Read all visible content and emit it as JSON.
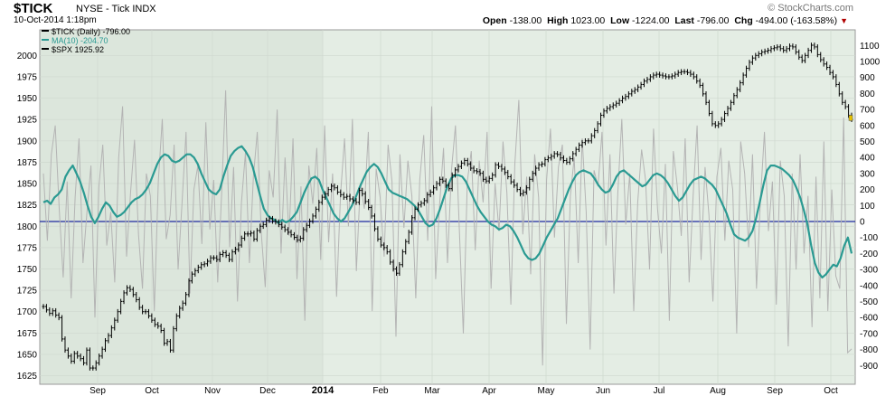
{
  "header": {
    "symbol": "$TICK",
    "exchange_desc": "NYSE - Tick INDX",
    "datetime": "10-Oct-2014 1:18pm",
    "brand": "© StockCharts.com",
    "ohlc": {
      "open_label": "Open",
      "open": "-138.00",
      "high_label": "High",
      "high": "1023.00",
      "low_label": "Low",
      "low": "-1224.00",
      "last_label": "Last",
      "last": "-796.00",
      "chg_label": "Chg",
      "chg": "-494.00 (-163.58%)"
    }
  },
  "legend": {
    "tick": "$TICK (Daily) -796.00",
    "ma": "MA(10) -204.70",
    "spx": "$SPX 1925.92"
  },
  "colors": {
    "background": "#ffffff",
    "plot_bg": "#e4ede4",
    "plot_bg_alt": "#dce6dc",
    "tick_line": "#b4b4b4",
    "ma_line": "#2a9a92",
    "spx_bars": "#000000",
    "zero_line": "#1f2aa0",
    "last_marker": "#e6c200"
  },
  "chart_data": {
    "type": "line",
    "x_labels": [
      "Sep",
      "Oct",
      "Nov",
      "Dec",
      "2014",
      "Feb",
      "Mar",
      "Apr",
      "May",
      "Jun",
      "Jul",
      "Aug",
      "Sep",
      "Oct"
    ],
    "y_left": {
      "label": "$SPX",
      "ticks": [
        1625,
        1650,
        1675,
        1700,
        1725,
        1750,
        1775,
        1800,
        1825,
        1850,
        1875,
        1900,
        1925,
        1950,
        1975,
        2000
      ],
      "range": [
        1615,
        2030
      ]
    },
    "y_right": {
      "label": "$TICK",
      "ticks": [
        -900,
        -800,
        -700,
        -600,
        -500,
        -400,
        -300,
        -200,
        -100,
        0,
        100,
        200,
        300,
        400,
        500,
        600,
        700,
        800,
        900,
        1000,
        1100
      ]
    },
    "series": [
      {
        "name": "$TICK (Daily)",
        "kind": "line",
        "values": [
          300,
          -120,
          420,
          600,
          80,
          -350,
          250,
          -480,
          150,
          520,
          -260,
          60,
          350,
          -600,
          220,
          480,
          -150,
          60,
          -380,
          400,
          720,
          -220,
          180,
          510,
          -80,
          -420,
          300,
          160,
          -560,
          250,
          640,
          -110,
          40,
          480,
          -300,
          120,
          560,
          -450,
          200,
          350,
          -140,
          620,
          -50,
          260,
          -380,
          180,
          820,
          -160,
          340,
          -500,
          120,
          430,
          -260,
          280,
          560,
          -70,
          -410,
          320,
          150,
          700,
          -200,
          400,
          -90,
          520,
          -360,
          220,
          -620,
          350,
          110,
          460,
          -240,
          600,
          -130,
          300,
          -470,
          170,
          520,
          -30,
          640,
          -310,
          240,
          80,
          560,
          -560,
          330,
          150,
          -220,
          480,
          250,
          -720,
          420,
          -40,
          380,
          160,
          -480,
          260,
          540,
          -120,
          720,
          -360,
          100,
          460,
          -260,
          320,
          600,
          -50,
          -700,
          250,
          440,
          -180,
          380,
          120,
          560,
          -420,
          240,
          -60,
          500,
          180,
          -520,
          360,
          760,
          -80,
          280,
          -330,
          420,
          150,
          -900,
          260,
          580,
          -100,
          340,
          480,
          -640,
          160,
          400,
          -260,
          520,
          60,
          -800,
          320,
          220,
          560,
          -150,
          420,
          -450,
          180,
          640,
          -20,
          300,
          -560,
          120,
          450,
          260,
          -300,
          580,
          80,
          -200,
          360,
          -620,
          440,
          220,
          -90,
          520,
          -380,
          160,
          600,
          -240,
          340,
          40,
          -500,
          280,
          460,
          -120,
          380,
          200,
          -700,
          500,
          300,
          -160,
          420,
          -420,
          140,
          560,
          -60,
          250,
          -520,
          380,
          160,
          -780,
          300,
          -300,
          420,
          -200,
          160,
          -660,
          280,
          -480,
          500,
          -560,
          200,
          -340,
          -420,
          650,
          -820,
          -796
        ]
      },
      {
        "name": "MA(10)",
        "kind": "line",
        "values": [
          120,
          130,
          110,
          150,
          170,
          200,
          280,
          320,
          350,
          300,
          250,
          180,
          100,
          30,
          -10,
          30,
          80,
          120,
          100,
          60,
          30,
          40,
          60,
          90,
          120,
          140,
          150,
          170,
          200,
          240,
          300,
          360,
          400,
          420,
          410,
          380,
          370,
          380,
          400,
          420,
          420,
          400,
          360,
          300,
          250,
          200,
          180,
          170,
          200,
          280,
          350,
          410,
          440,
          460,
          470,
          440,
          400,
          340,
          250,
          160,
          80,
          40,
          20,
          10,
          -10,
          10,
          -5,
          5,
          30,
          60,
          120,
          180,
          230,
          270,
          280,
          260,
          200,
          150,
          100,
          50,
          20,
          0,
          20,
          60,
          100,
          150,
          210,
          260,
          310,
          340,
          360,
          340,
          300,
          250,
          200,
          180,
          170,
          160,
          150,
          140,
          120,
          100,
          70,
          30,
          -10,
          -30,
          -20,
          20,
          80,
          150,
          220,
          270,
          290,
          290,
          280,
          250,
          200,
          150,
          100,
          60,
          30,
          0,
          -20,
          -30,
          -50,
          -40,
          -20,
          -30,
          -60,
          -100,
          -150,
          -200,
          -230,
          -240,
          -230,
          -200,
          -150,
          -100,
          -60,
          -20,
          20,
          80,
          140,
          200,
          250,
          290,
          310,
          320,
          310,
          300,
          270,
          230,
          200,
          180,
          190,
          230,
          280,
          310,
          320,
          300,
          280,
          260,
          240,
          220,
          230,
          260,
          290,
          300,
          290,
          270,
          240,
          200,
          160,
          130,
          150,
          190,
          230,
          260,
          270,
          280,
          270,
          250,
          230,
          200,
          150,
          100,
          50,
          -20,
          -80,
          -100,
          -110,
          -120,
          -100,
          -60,
          20,
          120,
          230,
          320,
          350,
          350,
          340,
          330,
          310,
          290,
          260,
          210,
          150,
          70,
          -20,
          -150,
          -260,
          -320,
          -350,
          -330,
          -300,
          -270,
          -280,
          -230,
          -150,
          -100,
          -200
        ]
      },
      {
        "name": "$SPX",
        "kind": "ohlc",
        "values": [
          1706,
          1702,
          1698,
          1701,
          1696,
          1693,
          1668,
          1655,
          1648,
          1642,
          1651,
          1648,
          1645,
          1640,
          1655,
          1634,
          1634,
          1640,
          1648,
          1656,
          1666,
          1672,
          1681,
          1690,
          1700,
          1712,
          1722,
          1728,
          1726,
          1720,
          1714,
          1705,
          1700,
          1700,
          1695,
          1690,
          1685,
          1683,
          1678,
          1663,
          1665,
          1655,
          1680,
          1695,
          1704,
          1710,
          1720,
          1736,
          1744,
          1748,
          1752,
          1755,
          1756,
          1759,
          1763,
          1763,
          1761,
          1767,
          1769,
          1766,
          1761,
          1770,
          1773,
          1778,
          1786,
          1791,
          1791,
          1792,
          1785,
          1795,
          1800,
          1802,
          1807,
          1809,
          1806,
          1805,
          1802,
          1799,
          1796,
          1793,
          1790,
          1787,
          1784,
          1786,
          1796,
          1801,
          1806,
          1812,
          1820,
          1828,
          1834,
          1838,
          1843,
          1847,
          1845,
          1840,
          1837,
          1834,
          1835,
          1832,
          1830,
          1828,
          1842,
          1838,
          1829,
          1822,
          1812,
          1797,
          1785,
          1778,
          1775,
          1770,
          1758,
          1750,
          1745,
          1755,
          1770,
          1782,
          1793,
          1810,
          1820,
          1825,
          1827,
          1830,
          1837,
          1840,
          1845,
          1850,
          1855,
          1853,
          1848,
          1844,
          1860,
          1866,
          1870,
          1874,
          1877,
          1873,
          1868,
          1865,
          1864,
          1862,
          1855,
          1853,
          1856,
          1860,
          1872,
          1870,
          1867,
          1863,
          1858,
          1852,
          1848,
          1843,
          1838,
          1840,
          1845,
          1855,
          1862,
          1868,
          1872,
          1873,
          1878,
          1880,
          1882,
          1885,
          1884,
          1880,
          1877,
          1875,
          1879,
          1885,
          1890,
          1895,
          1898,
          1900,
          1900,
          1906,
          1912,
          1920,
          1930,
          1935,
          1938,
          1940,
          1942,
          1944,
          1947,
          1950,
          1952,
          1955,
          1958,
          1960,
          1963,
          1966,
          1970,
          1972,
          1975,
          1977,
          1978,
          1977,
          1976,
          1975,
          1975,
          1976,
          1978,
          1980,
          1981,
          1981,
          1980,
          1978,
          1975,
          1970,
          1965,
          1955,
          1945,
          1932,
          1920,
          1918,
          1920,
          1925,
          1932,
          1938,
          1945,
          1953,
          1960,
          1968,
          1977,
          1985,
          1992,
          1997,
          2000,
          2002,
          2004,
          2005,
          2006,
          2008,
          2009,
          2010,
          2008,
          2006,
          2008,
          2011,
          2010,
          2004,
          1998,
          1994,
          2000,
          2006,
          2012,
          2010,
          2001,
          1995,
          1990,
          1986,
          1980,
          1975,
          1966,
          1955,
          1945,
          1940,
          1930,
          1925
        ]
      }
    ],
    "zero_line": 0
  }
}
